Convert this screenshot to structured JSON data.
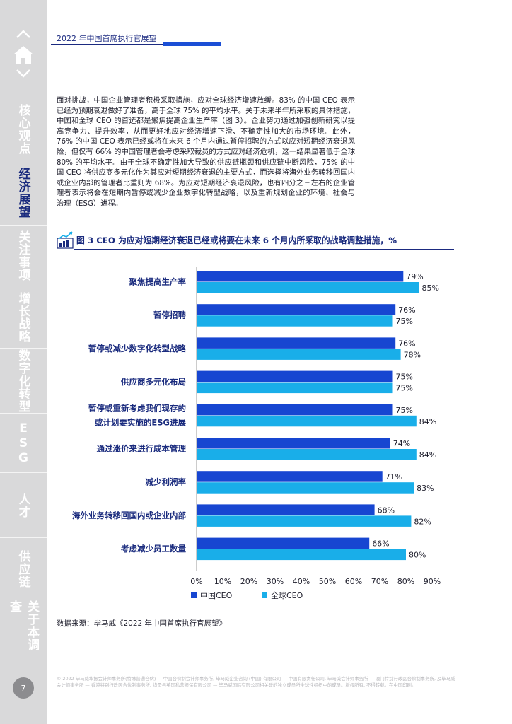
{
  "header": {
    "title": "2022 年中国首席执行官展望"
  },
  "sidebar": {
    "items": [
      {
        "label": "核心观点"
      },
      {
        "label": "经济展望"
      },
      {
        "label": "关注事项"
      },
      {
        "label": "增长战略"
      },
      {
        "label": "数字化转型"
      },
      {
        "label": "ESG"
      },
      {
        "label": "人才"
      },
      {
        "label": "供应链"
      },
      {
        "label": "关于本调查"
      }
    ],
    "page_number": "7"
  },
  "body_paragraph": "面对挑战，中国企业管理者积极采取措施，应对全球经济增速放缓。83% 的中国 CEO 表示已经为预期衰退做好了准备，高于全球 75% 的平均水平。关于未来半年所采取的具体措施，中国和全球 CEO 的首选都是聚焦提高企业生产率（图 3）。企业努力通过加强创新研究以提高竞争力、提升效率，从而更好地应对经济增速下滑、不确定性加大的市场环境。此外，76% 的中国 CEO 表示已经或将在未来 6 个月内通过暂停招聘的方式以应对短期经济衰退风险，但仅有 66% 的中国管理者会考虑采取裁员的方式应对经济危机，这一结果显著低于全球 80% 的平均水平。由于全球不确定性加大导致的供应链瓶颈和供应链中断风险，75% 的中国 CEO 将供应商多元化作为其应对短期经济衰退的主要方式，而选择将海外业务转移回国内或企业内部的管理者比重则为 68%。为应对短期经济衰退风险，也有四分之三左右的企业管理者表示将会在短期内暂停或减少企业数字化转型战略，以及重新规划企业的环境、社会与治理（ESG）进程。",
  "figure": {
    "title": "图 3 CEO 为应对短期经济衰退已经或将要在未来 6 个月内所采取的战略调整措施，%"
  },
  "chart_data": {
    "type": "bar",
    "orientation": "horizontal",
    "categories": [
      [
        "聚焦提高生产率"
      ],
      [
        "暂停招聘"
      ],
      [
        "暂停或减少数字化转型战略"
      ],
      [
        "供应商多元化布局"
      ],
      [
        "暂停或重新考虑我们现存的",
        "或计划要实施的ESG进展"
      ],
      [
        "通过涨价来进行成本管理"
      ],
      [
        "减少利润率"
      ],
      [
        "海外业务转移回国内或企业内部"
      ],
      [
        "考虑减少员工数量"
      ]
    ],
    "series": [
      {
        "name": "中国CEO",
        "color": "#1746d1",
        "values": [
          79,
          76,
          76,
          75,
          75,
          74,
          71,
          68,
          66
        ]
      },
      {
        "name": "全球CEO",
        "color": "#19aee9",
        "values": [
          85,
          75,
          78,
          75,
          84,
          84,
          83,
          82,
          80
        ]
      }
    ],
    "value_suffix": "%",
    "xlim": [
      0,
      90
    ],
    "xticks": [
      "0%",
      "10%",
      "20%",
      "30%",
      "40%",
      "50%",
      "60%",
      "70%",
      "80%",
      "90%"
    ],
    "legend_position": "bottom-left"
  },
  "source": "数据来源：毕马威《2022 年中国首席执行官展望》",
  "footer": "© 2022 毕马威华振会计师事务所(特殊普通合伙) — 中国合伙制会计师事务所, 毕马威企业咨询 (中国) 有限公司 — 中国有限责任公司, 毕马威会计师事务所 — 澳门特别行政区合伙制事务所, 及毕马威会计师事务所 — 香港特别行政区合伙制事务所, 均是与英国私营担保有限公司 — 毕马威国际有限公司相关联的独立成员所全球性组织中的成员。版权所有, 不得转载。在中国印刷。"
}
